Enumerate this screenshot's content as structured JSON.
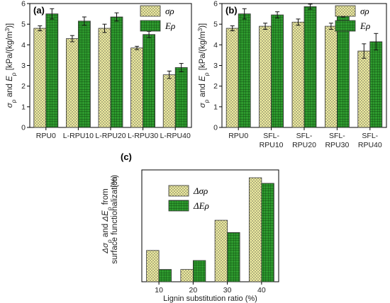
{
  "colors": {
    "sigma_fill": "#f6f3a4",
    "e_fill": "#2e9a2e",
    "err": "#111111"
  },
  "chart_data": [
    {
      "type": "bar",
      "panel_label": "(a)",
      "categories": [
        [
          "RPU0"
        ],
        [
          "L-RPU10"
        ],
        [
          "L-RPU20"
        ],
        [
          "L-RPU30"
        ],
        [
          "L-RPU40"
        ]
      ],
      "series": [
        {
          "name": "σρ",
          "values": [
            4.8,
            4.3,
            4.8,
            3.85,
            2.55
          ],
          "errors": [
            0.12,
            0.15,
            0.2,
            0.08,
            0.18
          ]
        },
        {
          "name": "Eρ",
          "values": [
            5.5,
            5.15,
            5.35,
            4.5,
            2.9
          ],
          "errors": [
            0.25,
            0.2,
            0.2,
            0.15,
            0.2
          ]
        }
      ],
      "ylim": [
        0,
        6
      ],
      "yticks": [
        0,
        1,
        2,
        3,
        4,
        5,
        6
      ],
      "ylabel_parts": [
        "σ",
        "ρ",
        " and ",
        "E",
        "ρ",
        " [kPa/(kg/m",
        "3",
        ")]"
      ],
      "xlabel": "",
      "legend": "top-right"
    },
    {
      "type": "bar",
      "panel_label": "(b)",
      "categories": [
        [
          "RPU0"
        ],
        [
          "SFL-",
          "RPU10"
        ],
        [
          "SFL-",
          "RPU20"
        ],
        [
          "SFL-",
          "RPU30"
        ],
        [
          "SFL-",
          "RPU40"
        ]
      ],
      "series": [
        {
          "name": "σρ",
          "values": [
            4.8,
            4.9,
            5.1,
            4.9,
            3.7
          ],
          "errors": [
            0.12,
            0.15,
            0.15,
            0.15,
            0.35
          ]
        },
        {
          "name": "Eρ",
          "values": [
            5.5,
            5.45,
            5.85,
            5.5,
            4.15
          ],
          "errors": [
            0.25,
            0.15,
            0.12,
            0.15,
            0.4
          ]
        }
      ],
      "ylim": [
        0,
        6
      ],
      "yticks": [
        0,
        1,
        2,
        3,
        4,
        5,
        6
      ],
      "ylabel_parts": [
        "σ",
        "ρ",
        " and ",
        "E",
        "ρ",
        " [kPa/(kg/m",
        "3",
        ")]"
      ],
      "xlabel": "",
      "legend": "top-right"
    },
    {
      "type": "bar",
      "panel_label": "(c)",
      "categories": [
        [
          "10"
        ],
        [
          "20"
        ],
        [
          "30"
        ],
        [
          "40"
        ]
      ],
      "series": [
        {
          "name": "Δσρ",
          "values": [
            14,
            5.5,
            27.5,
            46.5
          ]
        },
        {
          "name": "ΔEρ",
          "values": [
            5.5,
            9.5,
            22,
            44
          ]
        }
      ],
      "ylim": [
        0,
        50
      ],
      "xlabel": "Lignin substitution ratio (%)",
      "ylabel_parts": [
        "Δσ",
        "ρ",
        " and ",
        "ΔE",
        "ρ",
        " from"
      ],
      "ylabel_line2": "surface functionalization",
      "ylabel_line3": "(%)",
      "legend": "top-left"
    }
  ]
}
